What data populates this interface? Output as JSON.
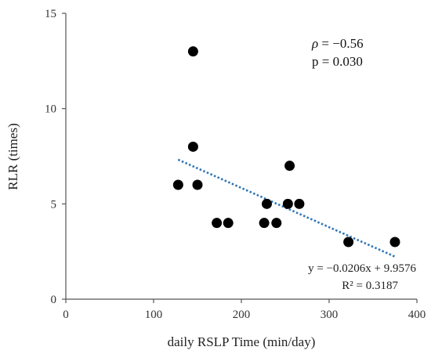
{
  "chart_data": {
    "type": "scatter",
    "xlabel": "daily RSLP Time (min/day)",
    "ylabel": "RLR (times)",
    "xlim": [
      0,
      400
    ],
    "ylim": [
      0,
      15
    ],
    "x_ticks": [
      "0",
      "100",
      "200",
      "300",
      "400"
    ],
    "y_ticks": [
      "0",
      "5",
      "10",
      "15"
    ],
    "grid": false,
    "points": [
      {
        "x": 145,
        "y": 13
      },
      {
        "x": 145,
        "y": 8
      },
      {
        "x": 128,
        "y": 6
      },
      {
        "x": 150,
        "y": 6
      },
      {
        "x": 172,
        "y": 4
      },
      {
        "x": 185,
        "y": 4
      },
      {
        "x": 226,
        "y": 4
      },
      {
        "x": 229,
        "y": 5
      },
      {
        "x": 240,
        "y": 4
      },
      {
        "x": 253,
        "y": 5
      },
      {
        "x": 255,
        "y": 7
      },
      {
        "x": 266,
        "y": 5
      },
      {
        "x": 322,
        "y": 3
      },
      {
        "x": 375,
        "y": 3
      }
    ],
    "trendline": {
      "slope": -0.0206,
      "intercept": 9.9576,
      "x_range": [
        128,
        375
      ],
      "style": "dotted",
      "color": "#2e75b6"
    },
    "marker_color": "#000000",
    "annotations": {
      "rho_symbol": "ρ",
      "rho_value": " = −0.56",
      "p_value": "p = 0.030",
      "equation": "y = −0.0206x + 9.9576",
      "r_squared": "R² = 0.3187"
    }
  }
}
